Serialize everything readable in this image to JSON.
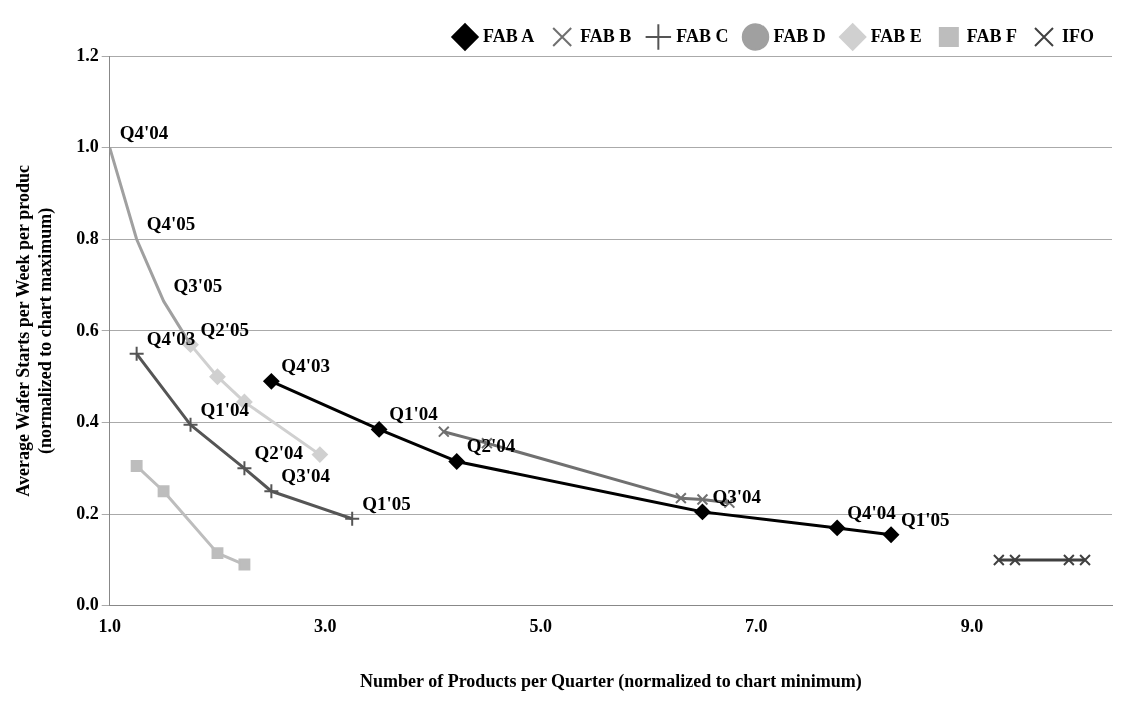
{
  "chart_data": {
    "type": "line",
    "xlabel": "Number of Products per Quarter (normalized to chart minimum)",
    "ylabel": "Average Wafer Starts per Week per produc\n(normalized to chart maximum)",
    "xlim": [
      1,
      10.3
    ],
    "xticks": [
      {
        "value": 1,
        "label": "1.0"
      },
      {
        "value": 3,
        "label": "3.0"
      },
      {
        "value": 5,
        "label": "5.0"
      },
      {
        "value": 7,
        "label": "7.0"
      },
      {
        "value": 9,
        "label": "9.0"
      }
    ],
    "ylim": [
      0,
      1.2
    ],
    "yticks": [
      {
        "value": 0,
        "label": "0.0"
      },
      {
        "value": 0.2,
        "label": "0.2"
      },
      {
        "value": 0.4,
        "label": "0.4"
      },
      {
        "value": 0.6,
        "label": "0.6"
      },
      {
        "value": 0.8,
        "label": "0.8"
      },
      {
        "value": 1,
        "label": "1.0"
      },
      {
        "value": 1.2,
        "label": "1.2"
      }
    ],
    "grid": "y",
    "legend": "top right",
    "series": [
      {
        "name": "FAB A",
        "color": "#000000",
        "marker": "diamond",
        "x": [
          2.5,
          3.5,
          4.22,
          6.5,
          7.75,
          8.25
        ],
        "values": [
          0.49,
          0.385,
          0.315,
          0.205,
          0.17,
          0.155
        ]
      },
      {
        "name": "FAB B",
        "color": "#707070",
        "marker": "cross",
        "x": [
          4.1,
          4.5,
          6.3,
          6.5,
          6.75
        ],
        "values": [
          0.38,
          0.355,
          0.235,
          0.232,
          0.225
        ]
      },
      {
        "name": "FAB C",
        "color": "#555555",
        "marker": "plus",
        "x": [
          1.25,
          1.75,
          2.25,
          2.5,
          3.25
        ],
        "values": [
          0.55,
          0.395,
          0.3,
          0.25,
          0.19
        ]
      },
      {
        "name": "FAB D",
        "color": "#a0a0a0",
        "marker": "none",
        "x": [
          1.0,
          1.25,
          1.5,
          1.75
        ],
        "values": [
          1.0,
          0.8,
          0.665,
          0.57
        ]
      },
      {
        "name": "FAB E",
        "color": "#d0d0d0",
        "marker": "diamond",
        "x": [
          1.75,
          2.0,
          2.25,
          2.95
        ],
        "values": [
          0.57,
          0.5,
          0.445,
          0.33
        ]
      },
      {
        "name": "FAB F",
        "color": "#bdbdbd",
        "marker": "square",
        "x": [
          1.25,
          1.5,
          2.0,
          2.25
        ],
        "values": [
          0.305,
          0.25,
          0.115,
          0.09
        ]
      },
      {
        "name": "IFO",
        "color": "#404040",
        "marker": "cross",
        "x": [
          9.25,
          9.4,
          9.9,
          10.05
        ],
        "values": [
          0.1,
          0.1,
          0.1,
          0.1
        ]
      }
    ],
    "annotations": [
      {
        "text": "Q4'03",
        "x": 2.5,
        "y": 0.49
      },
      {
        "text": "Q1'04",
        "x": 3.5,
        "y": 0.385
      },
      {
        "text": "Q2'04",
        "x": 4.22,
        "y": 0.315
      },
      {
        "text": "Q3'04",
        "x": 6.5,
        "y": 0.205
      },
      {
        "text": "Q4'04",
        "x": 7.75,
        "y": 0.17
      },
      {
        "text": "Q1'05",
        "x": 8.25,
        "y": 0.155
      },
      {
        "text": "Q4'03",
        "x": 1.25,
        "y": 0.55
      },
      {
        "text": "Q1'04",
        "x": 1.75,
        "y": 0.395
      },
      {
        "text": "Q2'04",
        "x": 2.25,
        "y": 0.3
      },
      {
        "text": "Q3'04",
        "x": 2.5,
        "y": 0.25
      },
      {
        "text": "Q1'05",
        "x": 3.25,
        "y": 0.19
      },
      {
        "text": "Q4'04",
        "x": 1.0,
        "y": 1.0
      },
      {
        "text": "Q4'05",
        "x": 1.25,
        "y": 0.8
      },
      {
        "text": "Q3'05",
        "x": 1.5,
        "y": 0.665
      },
      {
        "text": "Q2'05",
        "x": 1.75,
        "y": 0.57
      }
    ]
  }
}
